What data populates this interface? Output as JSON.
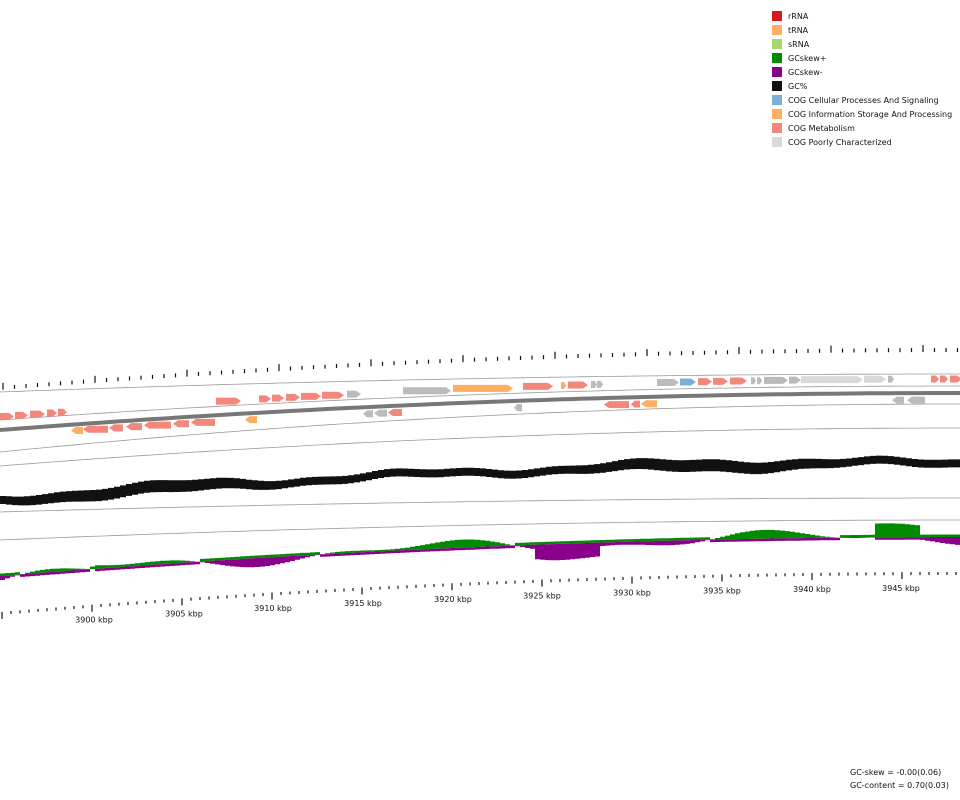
{
  "legend": [
    {
      "label": "rRNA",
      "color": "#d7191c"
    },
    {
      "label": "tRNA",
      "color": "#fdae61"
    },
    {
      "label": "sRNA",
      "color": "#a6d96a"
    },
    {
      "label": "GCskew+",
      "color": "#008b00"
    },
    {
      "label": "GCskew-",
      "color": "#8b008b"
    },
    {
      "label": "GC%",
      "color": "#111111"
    },
    {
      "label": "COG Cellular Processes And Signaling",
      "color": "#7bafd4"
    },
    {
      "label": "COG Information Storage And Processing",
      "color": "#fdae61"
    },
    {
      "label": "COG Metabolism",
      "color": "#f4877b"
    },
    {
      "label": "COG Poorly Characterized",
      "color": "#d9d9d9"
    }
  ],
  "scale_labels": [
    "3900 kbp",
    "3905 kbp",
    "3910 kbp",
    "3915 kbp",
    "3920 kbp",
    "3925 kbp",
    "3930 kbp",
    "3935 kbp",
    "3940 kbp",
    "3945 kbp"
  ],
  "stats": {
    "gc_skew": "GC-skew = -0.00(0.06)",
    "gc_content": "GC-content = 0.70(0.03)"
  },
  "colors": {
    "metabolism": "#f4877b",
    "info": "#fdae61",
    "cellular": "#7bafd4",
    "poor": "#bbbbbb",
    "poor_light": "#d9d9d9",
    "gc": "#111111",
    "skew_pos": "#008b00",
    "skew_neg": "#8b008b",
    "backbone": "#777777"
  }
}
